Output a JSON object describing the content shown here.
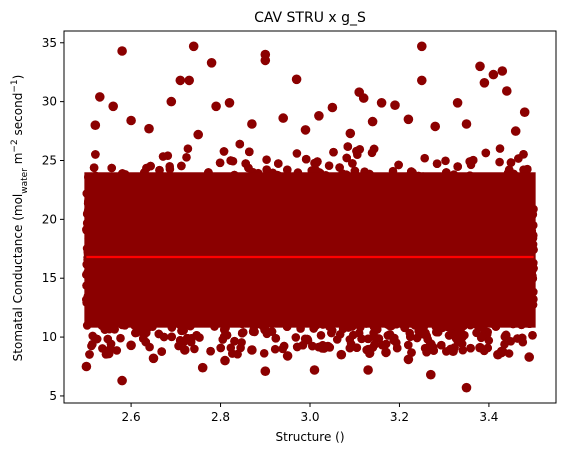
{
  "chart_data": {
    "type": "scatter",
    "title": "CAV STRU x g_S",
    "xlabel": "Structure ()",
    "ylabel_main": "Stomatal Conductance (mol",
    "ylabel_sub": "water",
    "ylabel_mid": " m",
    "ylabel_sup1": "−2",
    "ylabel_tail": " second",
    "ylabel_sup2": "−1",
    "ylabel_end": ")",
    "xlim": [
      2.45,
      3.55
    ],
    "ylim": [
      4.4,
      36.0
    ],
    "x_ticks": [
      2.6,
      2.8,
      3.0,
      3.2,
      3.4
    ],
    "x_tick_labels": [
      "2.6",
      "2.8",
      "3.0",
      "3.2",
      "3.4"
    ],
    "y_ticks": [
      5,
      10,
      15,
      20,
      25,
      30,
      35
    ],
    "y_tick_labels": [
      "5",
      "10",
      "15",
      "20",
      "25",
      "30",
      "35"
    ],
    "grid": false,
    "point_color": "#8b0000",
    "trend_line_color": "#ff0000",
    "trend_line": {
      "x": [
        2.5,
        3.5
      ],
      "y": [
        16.8,
        16.8
      ]
    },
    "scatter_band": {
      "x_range": [
        2.5,
        3.5
      ],
      "y_core": [
        8.5,
        26.5
      ]
    },
    "series": [
      {
        "points": [
          [
            2.58,
            34.3
          ],
          [
            2.74,
            34.7
          ],
          [
            3.25,
            34.7
          ],
          [
            2.9,
            34.0
          ],
          [
            2.9,
            33.5
          ],
          [
            2.78,
            33.3
          ],
          [
            3.38,
            33.0
          ],
          [
            3.43,
            32.6
          ],
          [
            3.41,
            32.3
          ],
          [
            2.97,
            31.9
          ],
          [
            2.71,
            31.8
          ],
          [
            2.73,
            31.8
          ],
          [
            3.25,
            31.8
          ],
          [
            3.39,
            31.6
          ],
          [
            3.44,
            30.9
          ],
          [
            2.53,
            30.4
          ],
          [
            3.11,
            30.8
          ],
          [
            3.12,
            30.3
          ],
          [
            2.69,
            30.0
          ],
          [
            2.82,
            29.9
          ],
          [
            3.16,
            29.9
          ],
          [
            3.33,
            29.9
          ],
          [
            2.56,
            29.6
          ],
          [
            2.79,
            29.6
          ],
          [
            3.05,
            29.5
          ],
          [
            3.19,
            29.7
          ],
          [
            3.48,
            29.1
          ],
          [
            2.6,
            28.4
          ],
          [
            2.94,
            28.6
          ],
          [
            3.02,
            28.8
          ],
          [
            3.22,
            28.5
          ],
          [
            2.52,
            28.0
          ],
          [
            2.87,
            28.1
          ],
          [
            3.14,
            28.3
          ],
          [
            3.35,
            28.1
          ],
          [
            2.64,
            27.7
          ],
          [
            2.99,
            27.6
          ],
          [
            3.28,
            27.9
          ],
          [
            3.46,
            27.5
          ],
          [
            2.75,
            27.2
          ],
          [
            3.09,
            27.3
          ],
          [
            2.58,
            6.3
          ],
          [
            2.76,
            7.4
          ],
          [
            2.9,
            7.1
          ],
          [
            3.01,
            7.2
          ],
          [
            3.13,
            7.2
          ],
          [
            3.27,
            6.8
          ],
          [
            3.35,
            5.7
          ],
          [
            2.5,
            7.5
          ],
          [
            3.42,
            8.5
          ],
          [
            2.81,
            8.0
          ],
          [
            3.07,
            8.5
          ],
          [
            3.22,
            8.1
          ],
          [
            2.65,
            8.2
          ],
          [
            2.95,
            8.4
          ],
          [
            3.49,
            8.3
          ],
          [
            2.55,
            8.6
          ],
          [
            3.17,
            8.7
          ],
          [
            3.32,
            8.8
          ],
          [
            2.87,
            8.9
          ],
          [
            2.72,
            8.9
          ],
          [
            3.38,
            9.1
          ],
          [
            3.04,
            9.2
          ],
          [
            2.6,
            9.3
          ],
          [
            3.27,
            9.4
          ]
        ]
      }
    ]
  }
}
